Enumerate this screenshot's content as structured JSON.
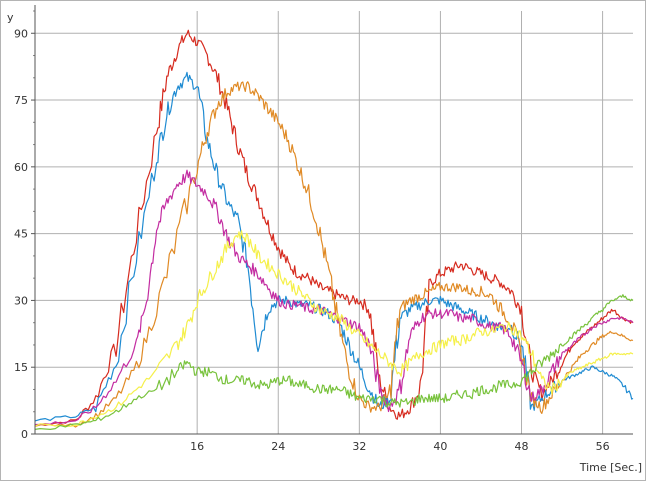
{
  "chart_data": {
    "type": "line",
    "title": "",
    "xlabel": "Time [Sec.]",
    "ylabel": "",
    "ylabel_fragment": "y",
    "xlim": [
      0,
      59
    ],
    "ylim": [
      0,
      95
    ],
    "x_ticks": [
      16,
      24,
      32,
      40,
      48,
      56
    ],
    "y_ticks": [
      0,
      15,
      30,
      45,
      60,
      75,
      90
    ],
    "grid": true,
    "legend": "none",
    "series": [
      {
        "color": "#d62b1f",
        "x": [
          0,
          4,
          6,
          8,
          10,
          12,
          13,
          14,
          15,
          16,
          17,
          18,
          19,
          20,
          21,
          22,
          23,
          24,
          25,
          26,
          27,
          28,
          29,
          30,
          31,
          32,
          33,
          34,
          35,
          36,
          37,
          38,
          39,
          40,
          41,
          42,
          43,
          44,
          45,
          46,
          47,
          48,
          49,
          50,
          51,
          52,
          53,
          54,
          55,
          56,
          57,
          58,
          59
        ],
        "y": [
          2,
          3,
          8,
          20,
          45,
          68,
          80,
          86,
          90,
          88,
          85,
          80,
          73,
          65,
          58,
          53,
          47,
          42,
          38,
          36,
          35,
          33,
          32,
          31,
          30,
          30,
          28,
          12,
          6,
          4,
          6,
          10,
          34,
          36,
          37,
          38,
          37,
          36,
          35,
          34,
          32,
          28,
          14,
          9,
          12,
          16,
          20,
          22,
          24,
          26,
          28,
          26,
          25
        ]
      },
      {
        "color": "#1f8bd2",
        "x": [
          0,
          4,
          6,
          8,
          10,
          12,
          13,
          14,
          15,
          16,
          17,
          18,
          19,
          20,
          21,
          22,
          23,
          24,
          25,
          26,
          27,
          28,
          29,
          30,
          31,
          32,
          33,
          34,
          35,
          36,
          37,
          38,
          39,
          40,
          41,
          42,
          43,
          44,
          45,
          46,
          47,
          48,
          49,
          50,
          51,
          52,
          53,
          54,
          55,
          56,
          57,
          58,
          59
        ],
        "y": [
          3,
          4,
          6,
          16,
          40,
          62,
          72,
          78,
          80,
          78,
          66,
          58,
          52,
          48,
          38,
          20,
          28,
          30,
          30,
          29,
          29,
          28,
          27,
          25,
          20,
          15,
          10,
          6,
          8,
          26,
          28,
          29,
          30,
          30,
          29,
          28,
          27,
          26,
          25,
          24,
          24,
          20,
          6,
          8,
          10,
          12,
          13,
          14,
          15,
          14,
          13,
          11,
          8
        ]
      },
      {
        "color": "#e08a25",
        "x": [
          0,
          4,
          6,
          8,
          10,
          12,
          14,
          16,
          17,
          18,
          19,
          20,
          21,
          22,
          23,
          24,
          25,
          26,
          27,
          28,
          29,
          30,
          31,
          32,
          33,
          34,
          35,
          36,
          37,
          38,
          39,
          40,
          41,
          42,
          43,
          44,
          45,
          46,
          47,
          48,
          49,
          50,
          51,
          52,
          53,
          54,
          55,
          56,
          57,
          58,
          59
        ],
        "y": [
          2,
          2,
          4,
          8,
          15,
          28,
          44,
          60,
          68,
          74,
          77,
          78,
          78,
          76,
          73,
          70,
          66,
          60,
          54,
          46,
          36,
          24,
          14,
          8,
          6,
          6,
          9,
          28,
          30,
          31,
          32,
          33,
          33,
          33,
          32,
          32,
          31,
          28,
          25,
          18,
          8,
          6,
          9,
          12,
          15,
          18,
          20,
          22,
          23,
          22,
          21
        ]
      },
      {
        "color": "#c32ca1",
        "x": [
          0,
          4,
          6,
          8,
          10,
          11,
          12,
          13,
          14,
          15,
          16,
          17,
          18,
          19,
          20,
          21,
          22,
          23,
          24,
          25,
          26,
          27,
          28,
          29,
          30,
          31,
          32,
          33,
          34,
          35,
          36,
          37,
          38,
          39,
          40,
          41,
          42,
          43,
          44,
          45,
          46,
          47,
          48,
          49,
          50,
          51,
          52,
          53,
          54,
          55,
          56,
          57,
          58,
          59
        ],
        "y": [
          2,
          3,
          6,
          12,
          20,
          30,
          46,
          52,
          56,
          58,
          56,
          54,
          50,
          44,
          40,
          38,
          36,
          33,
          30,
          29,
          29,
          28,
          28,
          27,
          26,
          25,
          24,
          20,
          10,
          6,
          10,
          22,
          26,
          27,
          27,
          27,
          26,
          26,
          25,
          24,
          24,
          22,
          16,
          8,
          10,
          14,
          18,
          20,
          22,
          24,
          25,
          26,
          26,
          25
        ]
      },
      {
        "color": "#f5f04a",
        "x": [
          0,
          4,
          6,
          8,
          10,
          12,
          14,
          15,
          16,
          17,
          18,
          19,
          20,
          21,
          22,
          23,
          24,
          25,
          26,
          27,
          28,
          29,
          30,
          31,
          32,
          33,
          34,
          35,
          36,
          37,
          38,
          39,
          40,
          41,
          42,
          43,
          44,
          45,
          46,
          47,
          48,
          49,
          50,
          51,
          52,
          53,
          54,
          55,
          56,
          57,
          58,
          59
        ],
        "y": [
          2,
          2,
          4,
          6,
          10,
          14,
          20,
          24,
          30,
          34,
          38,
          42,
          45,
          44,
          40,
          38,
          36,
          34,
          32,
          30,
          28,
          27,
          26,
          24,
          22,
          20,
          18,
          16,
          14,
          16,
          18,
          19,
          20,
          21,
          21,
          22,
          23,
          23,
          24,
          24,
          22,
          18,
          12,
          10,
          12,
          14,
          15,
          16,
          17,
          18,
          18,
          18
        ]
      },
      {
        "color": "#78c23c",
        "x": [
          0,
          4,
          6,
          8,
          10,
          12,
          14,
          15,
          16,
          17,
          18,
          19,
          20,
          21,
          22,
          23,
          24,
          25,
          26,
          27,
          28,
          29,
          30,
          31,
          32,
          33,
          34,
          35,
          36,
          37,
          38,
          39,
          40,
          41,
          42,
          43,
          44,
          45,
          46,
          47,
          48,
          49,
          50,
          51,
          52,
          53,
          54,
          55,
          56,
          57,
          58,
          59
        ],
        "y": [
          1,
          2,
          3,
          5,
          8,
          10,
          14,
          16,
          14,
          14,
          13,
          12,
          12,
          12,
          11,
          11,
          12,
          12,
          11,
          11,
          10,
          10,
          10,
          9,
          8,
          8,
          8,
          7,
          7,
          7,
          8,
          8,
          8,
          8,
          9,
          9,
          10,
          10,
          11,
          11,
          12,
          14,
          16,
          18,
          20,
          22,
          24,
          26,
          28,
          30,
          31,
          30
        ]
      }
    ]
  }
}
